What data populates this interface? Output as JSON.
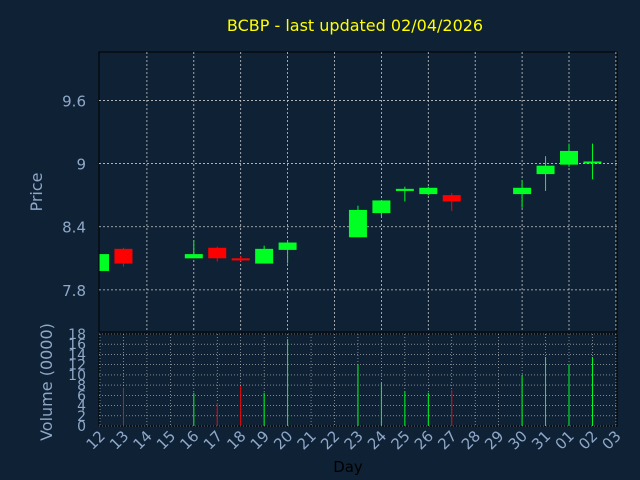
{
  "chart_data": {
    "type": "candlestick",
    "title": "BCBP - last updated 02/04/2026",
    "xlabel": "Day",
    "price_ylabel": "Price",
    "volume_ylabel": "Volume (0000)",
    "price_ylim": [
      7.4,
      10.06
    ],
    "price_yticks": [
      "7.8",
      "8.4",
      "9",
      "9.6"
    ],
    "volume_ylim": [
      0,
      18
    ],
    "volume_yticks": [
      "0",
      "2",
      "4",
      "6",
      "8",
      "10",
      "12",
      "14",
      "16",
      "18"
    ],
    "x_tick_labels": [
      "12",
      "13",
      "14",
      "15",
      "16",
      "17",
      "18",
      "19",
      "20",
      "21",
      "22",
      "23",
      "24",
      "25",
      "26",
      "27",
      "28",
      "29",
      "30",
      "31",
      "01",
      "02",
      "03"
    ],
    "grid": true,
    "colors": {
      "up": "#00ff22",
      "down": "#ff0000",
      "title": "#ffff00",
      "axis_text": "#8fa8c8",
      "grid": "#c8c8c8",
      "background": "#0f2135"
    },
    "candles": [
      {
        "x": "12",
        "open": 7.98,
        "high": 8.14,
        "low": 7.98,
        "close": 8.14,
        "volume": 0
      },
      {
        "x": "13",
        "open": 8.19,
        "high": 8.2,
        "low": 8.02,
        "close": 8.05,
        "volume": 7.5
      },
      {
        "x": "16",
        "open": 8.1,
        "high": 8.27,
        "low": 8.1,
        "close": 8.14,
        "volume": 6.5
      },
      {
        "x": "17",
        "open": 8.2,
        "high": 8.21,
        "low": 8.07,
        "close": 8.1,
        "volume": 4.5
      },
      {
        "x": "18",
        "open": 8.1,
        "high": 8.12,
        "low": 8.07,
        "close": 8.08,
        "volume": 7.8
      },
      {
        "x": "19",
        "open": 8.05,
        "high": 8.22,
        "low": 8.05,
        "close": 8.19,
        "volume": 6.5
      },
      {
        "x": "20",
        "open": 8.18,
        "high": 8.27,
        "low": 8.05,
        "close": 8.25,
        "volume": 17
      },
      {
        "x": "23",
        "open": 8.3,
        "high": 8.6,
        "low": 8.3,
        "close": 8.56,
        "volume": 12
      },
      {
        "x": "24",
        "open": 8.53,
        "high": 8.65,
        "low": 8.5,
        "close": 8.65,
        "volume": 8.5
      },
      {
        "x": "25",
        "open": 8.74,
        "high": 8.78,
        "low": 8.64,
        "close": 8.76,
        "volume": 6.8
      },
      {
        "x": "26",
        "open": 8.71,
        "high": 8.78,
        "low": 8.7,
        "close": 8.77,
        "volume": 6.5
      },
      {
        "x": "27",
        "open": 8.7,
        "high": 8.72,
        "low": 8.55,
        "close": 8.64,
        "volume": 7
      },
      {
        "x": "30",
        "open": 8.71,
        "high": 8.84,
        "low": 8.58,
        "close": 8.77,
        "volume": 10
      },
      {
        "x": "31",
        "open": 8.9,
        "high": 9.07,
        "low": 8.74,
        "close": 8.98,
        "volume": 13.5
      },
      {
        "x": "01",
        "open": 8.99,
        "high": 9.19,
        "low": 8.97,
        "close": 9.12,
        "volume": 12
      },
      {
        "x": "02",
        "open": 9.01,
        "high": 9.19,
        "low": 8.85,
        "close": 9.02,
        "volume": 13.5
      }
    ]
  }
}
